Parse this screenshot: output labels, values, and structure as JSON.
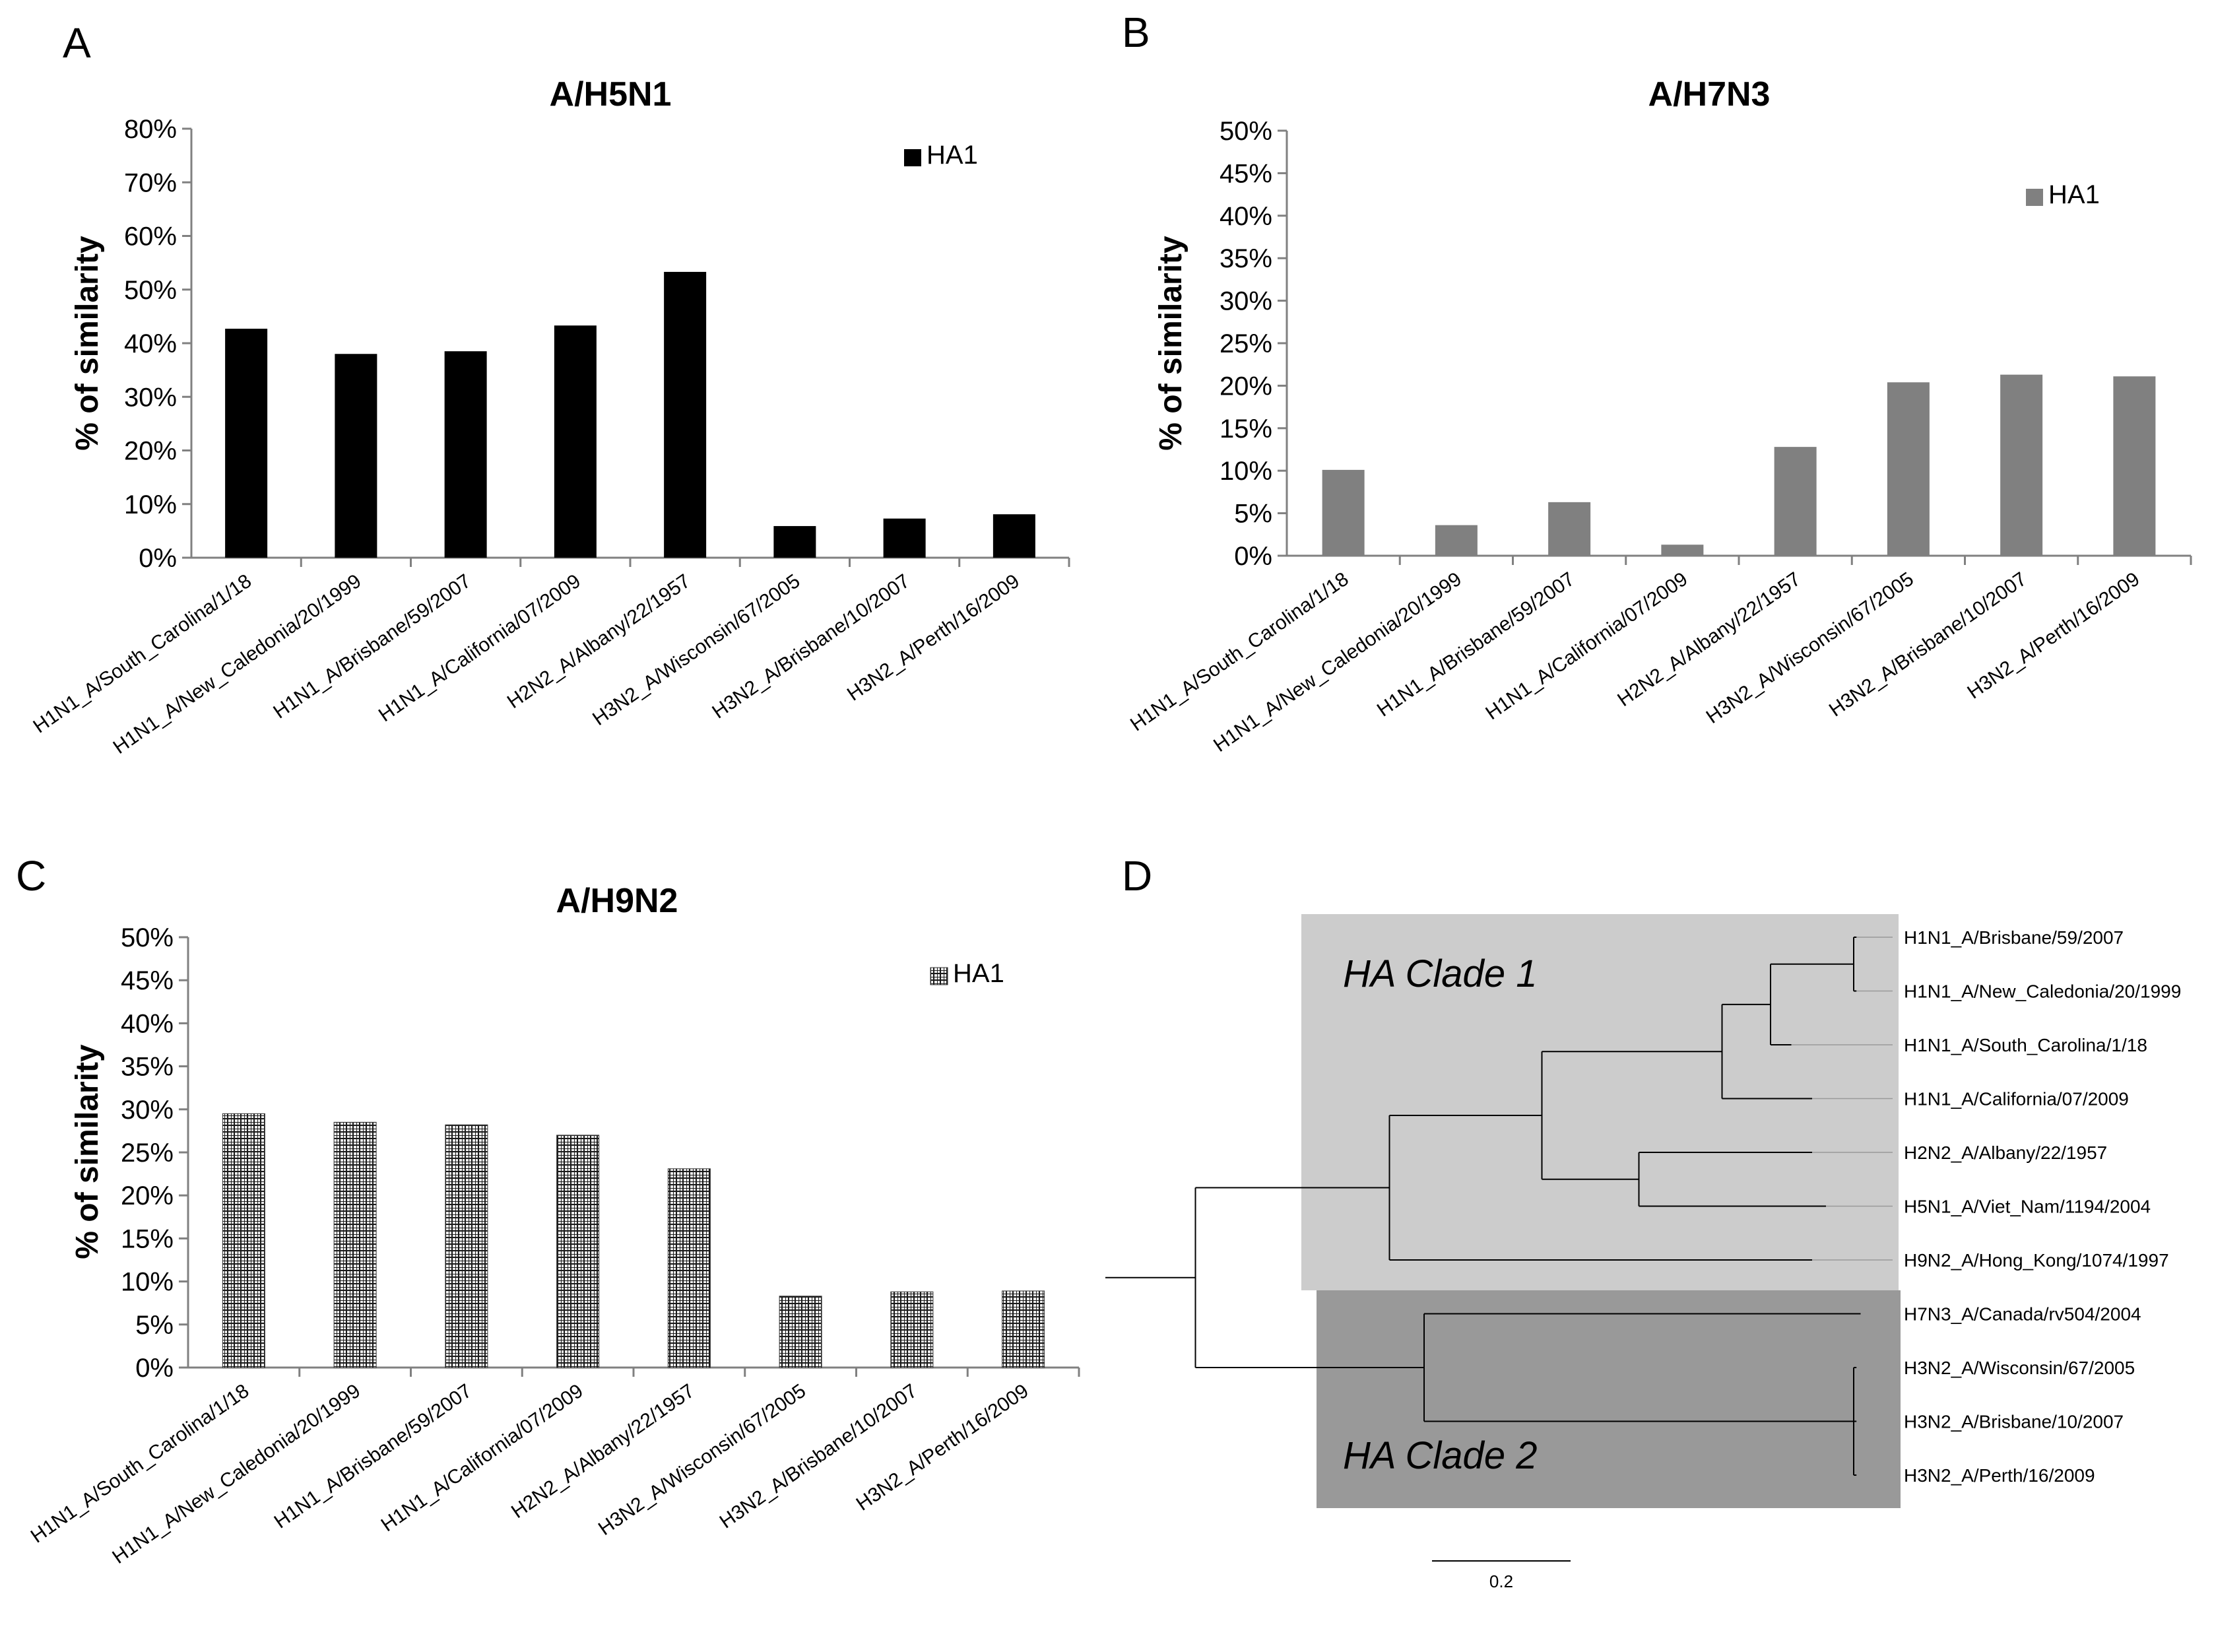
{
  "panels": {
    "a": "A",
    "b": "B",
    "c": "C",
    "d": "D"
  },
  "chart_data": [
    {
      "id": "A",
      "type": "bar",
      "title": "A/H5N1",
      "ylabel": "% of similarity",
      "xlabel": "",
      "ylim": [
        0,
        80
      ],
      "ystep": 10,
      "grid": false,
      "legend": {
        "label": "HA1",
        "placement": "top-right"
      },
      "series": [
        {
          "name": "HA1",
          "color": "#000000",
          "fill": "solid"
        }
      ],
      "categories": [
        "H1N1_A/South_Carolina/1/18",
        "H1N1_A/New_Caledonia/20/1999",
        "H1N1_A/Brisbane/59/2007",
        "H1N1_A/California/07/2009",
        "H2N2_A/Albany/22/1957",
        "H3N2_A/Wisconsin/67/2005",
        "H3N2_A/Brisbane/10/2007",
        "H3N2_A/Perth/16/2009"
      ],
      "values": [
        42.7,
        38.0,
        38.5,
        43.3,
        53.3,
        5.9,
        7.3,
        8.1
      ],
      "ticks": [
        "0%",
        "10%",
        "20%",
        "30%",
        "40%",
        "50%",
        "60%",
        "70%",
        "80%"
      ]
    },
    {
      "id": "B",
      "type": "bar",
      "title": "A/H7N3",
      "ylabel": "% of similarity",
      "xlabel": "",
      "ylim": [
        0,
        50
      ],
      "ystep": 5,
      "grid": false,
      "legend": {
        "label": "HA1",
        "placement": "top-right"
      },
      "series": [
        {
          "name": "HA1",
          "color": "#808080",
          "fill": "solid"
        }
      ],
      "categories": [
        "H1N1_A/South_Carolina/1/18",
        "H1N1_A/New_Caledonia/20/1999",
        "H1N1_A/Brisbane/59/2007",
        "H1N1_A/California/07/2009",
        "H2N2_A/Albany/22/1957",
        "H3N2_A/Wisconsin/67/2005",
        "H3N2_A/Brisbane/10/2007",
        "H3N2_A/Perth/16/2009"
      ],
      "values": [
        10.1,
        3.6,
        6.3,
        1.3,
        12.8,
        20.4,
        21.3,
        21.1
      ],
      "ticks": [
        "0%",
        "5%",
        "10%",
        "15%",
        "20%",
        "25%",
        "30%",
        "35%",
        "40%",
        "45%",
        "50%"
      ]
    },
    {
      "id": "C",
      "type": "bar",
      "title": "A/H9N2",
      "ylabel": "% of similarity",
      "xlabel": "",
      "ylim": [
        0,
        50
      ],
      "ystep": 5,
      "grid": false,
      "legend": {
        "label": "HA1",
        "placement": "top-right"
      },
      "series": [
        {
          "name": "HA1",
          "color": "#333333",
          "fill": "grid"
        }
      ],
      "categories": [
        "H1N1_A/South_Carolina/1/18",
        "H1N1_A/New_Caledonia/20/1999",
        "H1N1_A/Brisbane/59/2007",
        "H1N1_A/California/07/2009",
        "H2N2_A/Albany/22/1957",
        "H3N2_A/Wisconsin/67/2005",
        "H3N2_A/Brisbane/10/2007",
        "H3N2_A/Perth/16/2009"
      ],
      "values": [
        29.5,
        28.5,
        28.2,
        27.0,
        23.1,
        8.3,
        8.8,
        8.9
      ],
      "ticks": [
        "0%",
        "5%",
        "10%",
        "15%",
        "20%",
        "25%",
        "30%",
        "35%",
        "40%",
        "45%",
        "50%"
      ]
    },
    {
      "id": "D",
      "type": "tree",
      "title": "",
      "clades": [
        "HA Clade 1",
        "HA Clade 2"
      ],
      "scale_bar": {
        "label": "0.2",
        "length": 0.2
      },
      "tree": {
        "bl": 0.13,
        "children": [
          {
            "bl": 0.28,
            "children": [
              {
                "bl": 0.22,
                "children": [
                  {
                    "bl": 0.26,
                    "children": [
                      {
                        "bl": 0.07,
                        "children": [
                          {
                            "bl": 0.12,
                            "children": [
                              {
                                "label": "H1N1_A/Brisbane/59/2007",
                                "bl": 0.004
                              },
                              {
                                "label": "H1N1_A/New_Caledonia/20/1999",
                                "bl": 0.004
                              }
                            ]
                          },
                          {
                            "label": "H1N1_A/South_Carolina/1/18",
                            "bl": 0.03
                          }
                        ]
                      },
                      {
                        "label": "H1N1_A/California/07/2009",
                        "bl": 0.13
                      }
                    ]
                  },
                  {
                    "bl": 0.14,
                    "children": [
                      {
                        "label": "H2N2_A/Albany/22/1957",
                        "bl": 0.25
                      },
                      {
                        "label": "H5N1_A/Viet_Nam/1194/2004",
                        "bl": 0.27
                      }
                    ]
                  }
                ]
              },
              {
                "label": "H9N2_A/Hong_Kong/1074/1997",
                "bl": 0.61
              }
            ]
          },
          {
            "bl": 0.33,
            "children": [
              {
                "label": "H7N3_A/Canada/rv504/2004",
                "bl": 0.63
              },
              {
                "bl": 0.62,
                "children": [
                  {
                    "label": "H3N2_A/Wisconsin/67/2005",
                    "bl": 0.004
                  },
                  {
                    "label": "H3N2_A/Brisbane/10/2007",
                    "bl": 0.004
                  },
                  {
                    "label": "H3N2_A/Perth/16/2009",
                    "bl": 0.004
                  }
                ]
              }
            ]
          }
        ]
      }
    }
  ]
}
